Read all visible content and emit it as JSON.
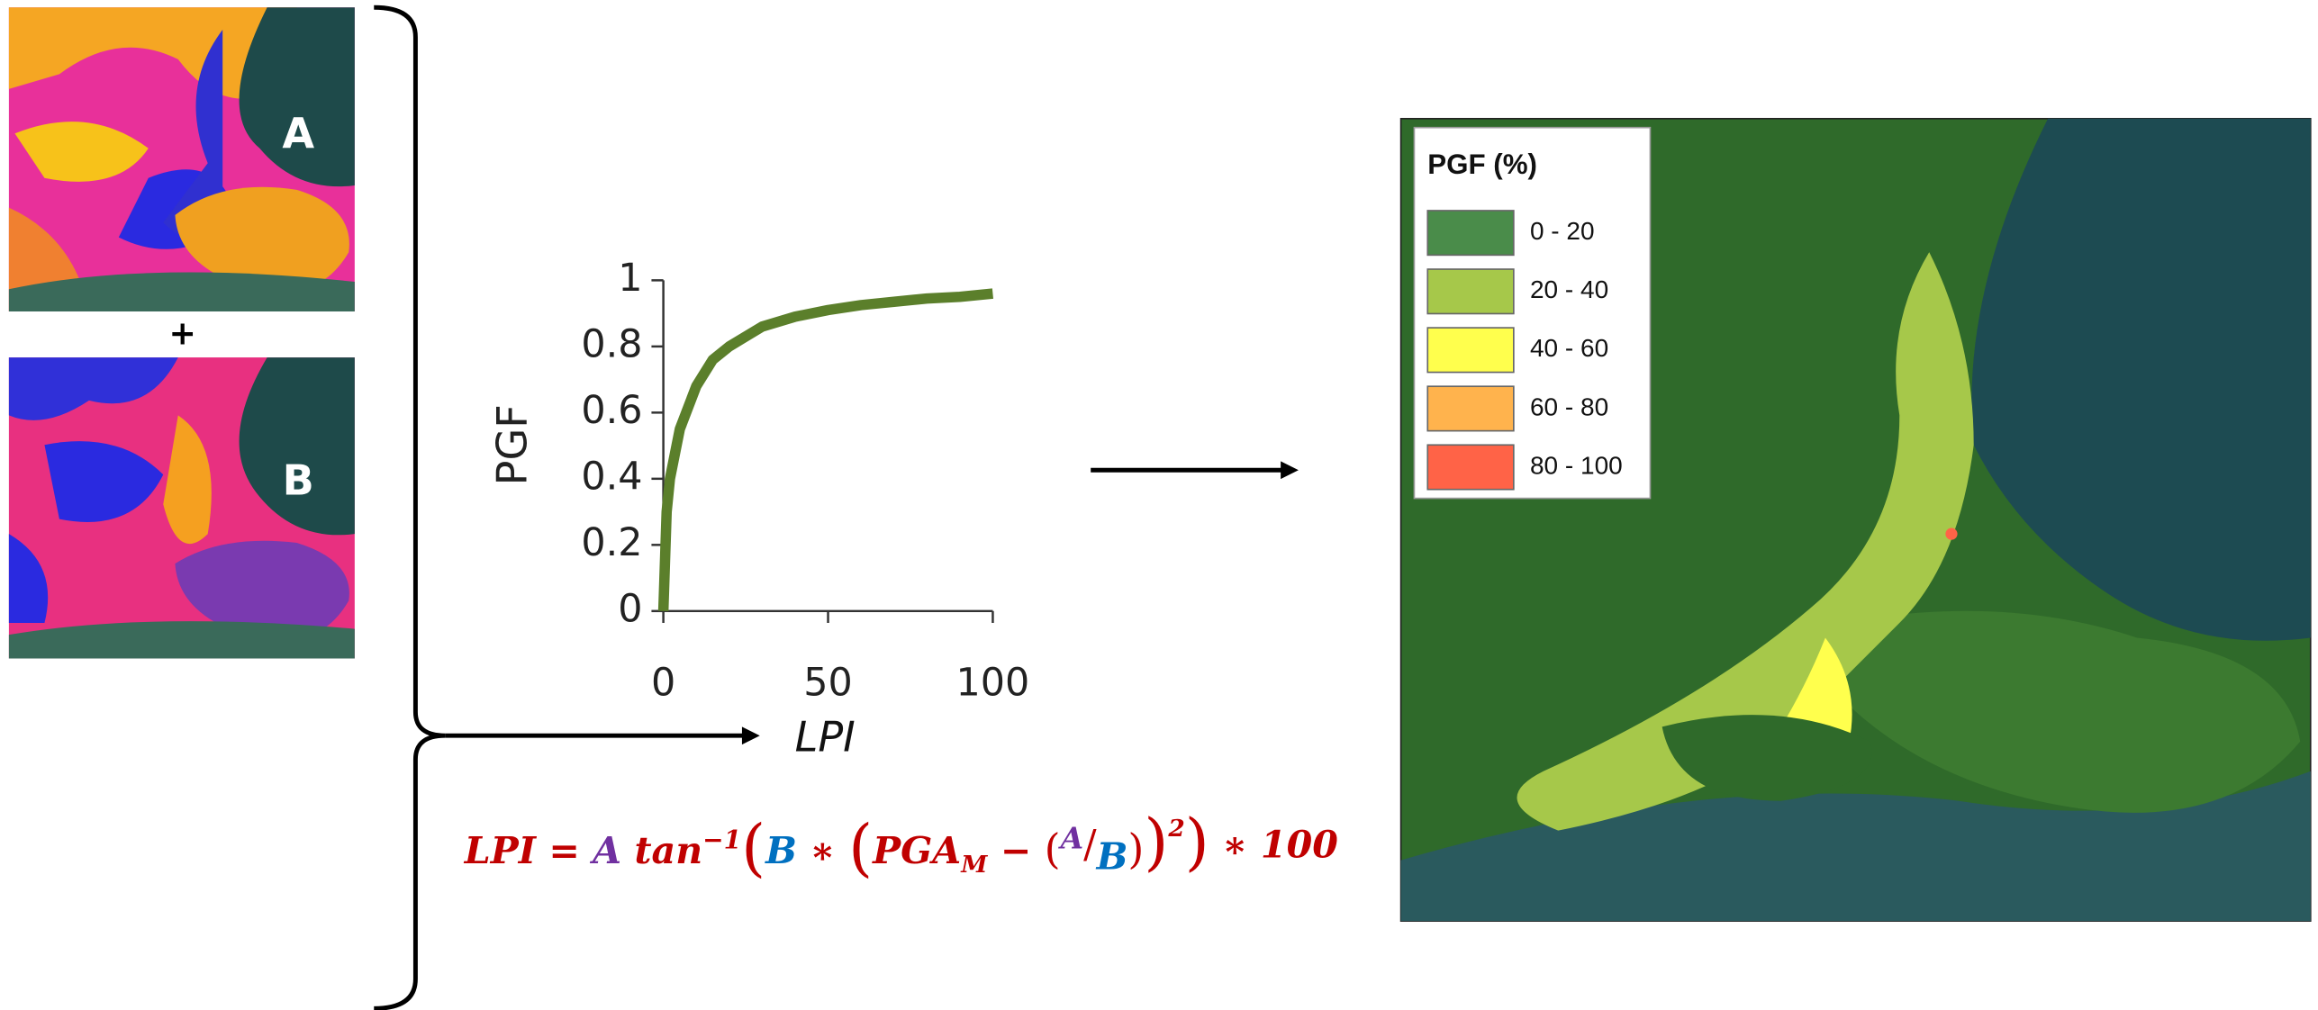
{
  "inputs": {
    "a_label": "A",
    "plus": "+",
    "b_label": "B"
  },
  "chart_data": {
    "type": "line",
    "x_label": "LPI",
    "y_label": "PGF",
    "x": [
      0,
      1,
      2,
      5,
      10,
      15,
      20,
      30,
      40,
      50,
      60,
      70,
      80,
      90,
      100
    ],
    "series": [
      {
        "color": "#5b7f2b",
        "values": [
          0,
          0.3,
          0.4,
          0.55,
          0.68,
          0.76,
          0.8,
          0.86,
          0.89,
          0.91,
          0.925,
          0.935,
          0.945,
          0.95,
          0.96
        ]
      }
    ],
    "xlim": [
      0,
      100
    ],
    "ylim": [
      0,
      1
    ],
    "xticks": [
      0,
      50,
      100
    ],
    "yticks": [
      0,
      0.2,
      0.4,
      0.6,
      0.8,
      1
    ]
  },
  "formula": {
    "parts": [
      "LPI = ",
      "A",
      " tan",
      "−1",
      "(",
      "B",
      " ∗ ",
      "(",
      "PGA",
      "M",
      " − ",
      "(",
      "A",
      "/",
      "B",
      ")",
      ")",
      "2",
      ")",
      " ∗ 100"
    ]
  },
  "legend": {
    "title": "PGF (%)",
    "items": [
      {
        "label": "0 - 20",
        "color": "#4a8c4a"
      },
      {
        "label": "20 - 40",
        "color": "#a6c84a"
      },
      {
        "label": "40 - 60",
        "color": "#ffff4d"
      },
      {
        "label": "60 - 80",
        "color": "#ffb34d"
      },
      {
        "label": "80 - 100",
        "color": "#ff6347"
      }
    ]
  }
}
